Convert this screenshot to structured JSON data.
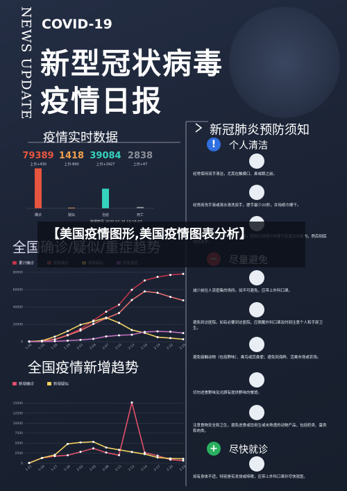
{
  "header": {
    "side_label": "NEWS UPDATE",
    "tag": "COVID-19",
    "title_line1": "新型冠状病毒",
    "title_line2": "疫情日报"
  },
  "overlay_title": "【美国疫情图形,美国疫情图表分析】",
  "chart_data": [
    {
      "type": "bar",
      "title": "疫情实时数据",
      "note": "数据截至 2020-02-25 13:16:07",
      "categories": [
        "确诊",
        "疑似",
        "治愈",
        "死亡"
      ],
      "values": [
        79389,
        1418,
        39084,
        2838
      ],
      "changes": [
        "上日+430",
        "上日-890",
        "上日+2927",
        "上日+47"
      ],
      "colors": [
        "#e8553e",
        "#f0a04b",
        "#35d3bd",
        "#8b8f98"
      ],
      "ylim": [
        0,
        80000
      ]
    },
    {
      "type": "line",
      "title": "全国确诊/疑似/重症趋势",
      "categories": [
        "1-20",
        "1-23",
        "1-26",
        "1-29",
        "2-01",
        "2-04",
        "2-07",
        "2-10",
        "2-13",
        "2-16",
        "2-19",
        "2-22",
        "2-25"
      ],
      "series": [
        {
          "name": "累计确诊",
          "color": "#c0334a",
          "values": [
            291,
            830,
            2744,
            7711,
            14380,
            24324,
            34546,
            42638,
            59804,
            70548,
            74576,
            76936,
            78064
          ]
        },
        {
          "name": "现有确诊",
          "color": "#e87070",
          "values": [
            270,
            780,
            2600,
            7300,
            12800,
            20400,
            27000,
            33000,
            48000,
            57900,
            56300,
            51600,
            47600
          ]
        },
        {
          "name": "现有疑似",
          "color": "#f0d060",
          "values": [
            54,
            1072,
            5794,
            12167,
            19544,
            23260,
            27657,
            21675,
            13435,
            10109,
            5248,
            4148,
            2824
          ]
        },
        {
          "name": "现有重症",
          "color": "#c070c0",
          "values": [
            0,
            177,
            461,
            1239,
            2110,
            3219,
            6101,
            7333,
            8030,
            11272,
            11864,
            11477,
            9915
          ]
        }
      ],
      "ylim": [
        0,
        80000
      ],
      "yticks": [
        0,
        20000,
        40000,
        60000,
        80000
      ],
      "grid": true
    },
    {
      "type": "line",
      "title": "全国疫情新增趋势",
      "categories": [
        "1-21",
        "1-24",
        "1-27",
        "1-30",
        "2-02",
        "2-05",
        "2-08",
        "2-11",
        "2-12",
        "2-14",
        "2-17",
        "2-20",
        "2-23"
      ],
      "series": [
        {
          "name": "新增确诊",
          "color": "#e0506a",
          "values": [
            77,
            1297,
            1771,
            1982,
            2829,
            3694,
            2656,
            2015,
            15152,
            2641,
            1886,
            889,
            648
          ]
        },
        {
          "name": "新增疑似",
          "color": "#f0d060",
          "values": [
            54,
            1309,
            2077,
            4812,
            5173,
            5328,
            3916,
            3342,
            2807,
            2277,
            1432,
            1185,
            1107
          ]
        }
      ],
      "ylim": [
        0,
        17500
      ],
      "yticks": [
        0,
        2500,
        5000,
        7500,
        10000,
        12500,
        15000
      ],
      "grid": true
    }
  ],
  "prevention": {
    "title": "新冠肺炎预防须知",
    "sections": [
      {
        "heading": "个人清洁",
        "items": [
          "经常保持双手清洁，尤其在触摸口、鼻或眼之前。",
          "经常用洗手液或清水清洗双手，搓手最少20秒，并用纸巾擦干。",
          "打喷嚏或咳嗽时用纸巾掩盖口鼻，把用过的纸巾弃置于有盖垃圾箱内，然后彻底清洁双手。"
        ]
      },
      {
        "heading": "尽量避免",
        "items": [
          "减少前往人流密集的场所。如不可避免，应带上外科口罩。",
          "避免到访医院。如有必要到访医院，应佩戴外科口罩及时刻注意个人和手部卫生。",
          "避免接触动物（包括野味）、禽鸟或其粪便；避免到海鲜、活禽市场或农场。",
          "切勿进食野味及光顾有提供野味的餐馆。",
          "注意食物安全和卫生，避免进食或饮用生或未熟透的动物产品，包括奶类、蛋类和肉类。"
        ]
      },
      {
        "heading": "尽快就诊",
        "items": [
          "如有身体不适，特别是有发烧或咳嗽，应带上外科口罩并尽快就医。"
        ]
      }
    ]
  }
}
